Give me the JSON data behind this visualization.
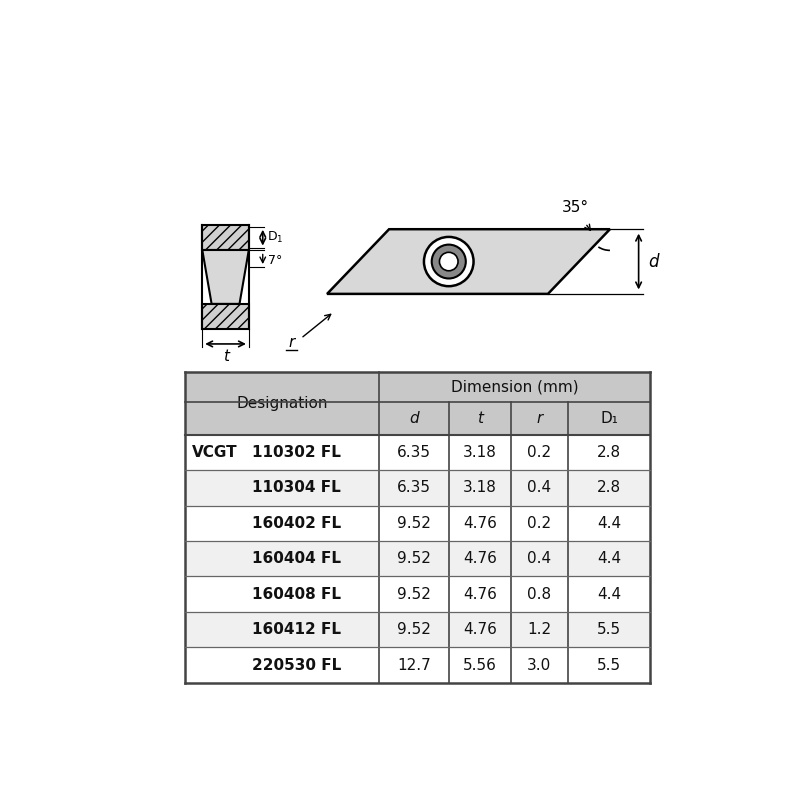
{
  "table_header_col1": "Designation",
  "table_header_dim": "Dimension (mm)",
  "table_sub_headers": [
    "d",
    "t",
    "r",
    "D1"
  ],
  "vcgt_label": "VCGT",
  "rows": [
    {
      "name": "110302 FL",
      "d": "6.35",
      "t": "3.18",
      "r": "0.2",
      "D1": "2.8"
    },
    {
      "name": "110304 FL",
      "d": "6.35",
      "t": "3.18",
      "r": "0.4",
      "D1": "2.8"
    },
    {
      "name": "160402 FL",
      "d": "9.52",
      "t": "4.76",
      "r": "0.2",
      "D1": "4.4"
    },
    {
      "name": "160404 FL",
      "d": "9.52",
      "t": "4.76",
      "r": "0.4",
      "D1": "4.4"
    },
    {
      "name": "160408 FL",
      "d": "9.52",
      "t": "4.76",
      "r": "0.8",
      "D1": "4.4"
    },
    {
      "name": "160412 FL",
      "d": "9.52",
      "t": "4.76",
      "r": "1.2",
      "D1": "5.5"
    },
    {
      "name": "220530 FL",
      "d": "12.7",
      "t": "5.56",
      "r": "3.0",
      "D1": "5.5"
    }
  ],
  "bg_color": "#ffffff",
  "header_bg": "#c8c8c8",
  "data_row_bg": "#ffffff",
  "border_color": "#333333",
  "text_color": "#111111",
  "diagram_fill": "#d8d8d8",
  "angle_label": "35°",
  "angle_deg_label": "7°",
  "d_label": "d",
  "t_label": "t",
  "r_label": "r",
  "D1_label": "D1"
}
